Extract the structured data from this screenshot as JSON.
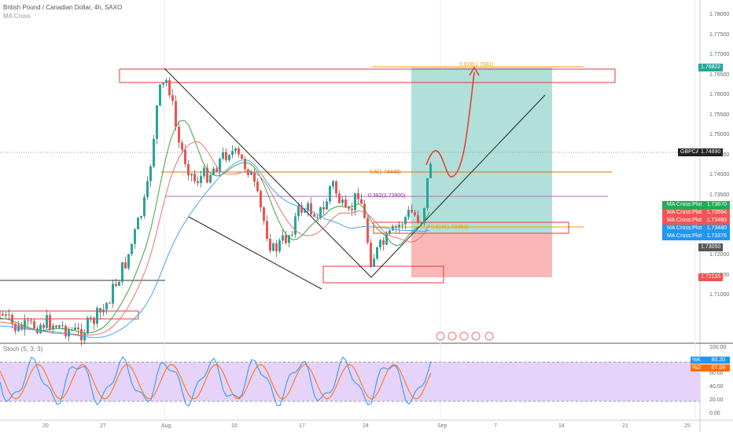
{
  "header": {
    "symbol_title": "British Pound / Canadian Dollar, 4h, SAXO",
    "indicator": "MA Cross",
    "stoch_label": "Stoch (5, 3, 3)"
  },
  "price_axis": [
    "1.78000",
    "1.77500",
    "1.77000",
    "1.76500",
    "1.76000",
    "1.75500",
    "1.75000",
    "1.74500",
    "1.74000",
    "1.73500",
    "1.73000",
    "1.72500",
    "1.72000",
    "1.71500",
    "1.71000"
  ],
  "stoch_axis": [
    "100.00",
    "80.00",
    "60.00",
    "40.00",
    "20.00",
    "0.00"
  ],
  "price_tags": {
    "target": "1.76822",
    "symbol": "GBPCAD",
    "last": "1.74890",
    "stop_low": "1.73050",
    "stop": "1.72155"
  },
  "ma_tags": [
    {
      "label": "MA Cross:Plot",
      "value": "1.73670",
      "color": "#22aa55"
    },
    {
      "label": "MA Cross:Plot",
      "value": "1.73564",
      "color": "#f25555"
    },
    {
      "label": "MA Cross:Plot",
      "value": "1.73483",
      "color": "#f25555"
    },
    {
      "label": "MA Cross:Plot",
      "value": "1.73480",
      "color": "#2196f3"
    },
    {
      "label": "MA Cross:Plot",
      "value": "1.73376",
      "color": "#2196f3"
    }
  ],
  "stoch_tags": [
    {
      "label": "%K",
      "value": "80.20",
      "color": "#2196f3"
    },
    {
      "label": "%D",
      "value": "67.59",
      "color": "#ff6d00"
    }
  ],
  "fib_labels": {
    "top": "0.618(1.7681)",
    "mid": "0.5(1.74448)",
    "low": "0.382(1.73900)",
    "bottom": "0.618(1.72953)"
  },
  "x_axis": [
    "20",
    "27",
    "Aug",
    "10",
    "17",
    "24",
    "Sep",
    "7",
    "14",
    "21",
    "25"
  ],
  "colors": {
    "up": "#26a69a",
    "down": "#ef5350",
    "tp_zone": "#a8dcd5",
    "sl_zone": "#f8b0ad",
    "stoch_band": "#e6d3fa"
  }
}
